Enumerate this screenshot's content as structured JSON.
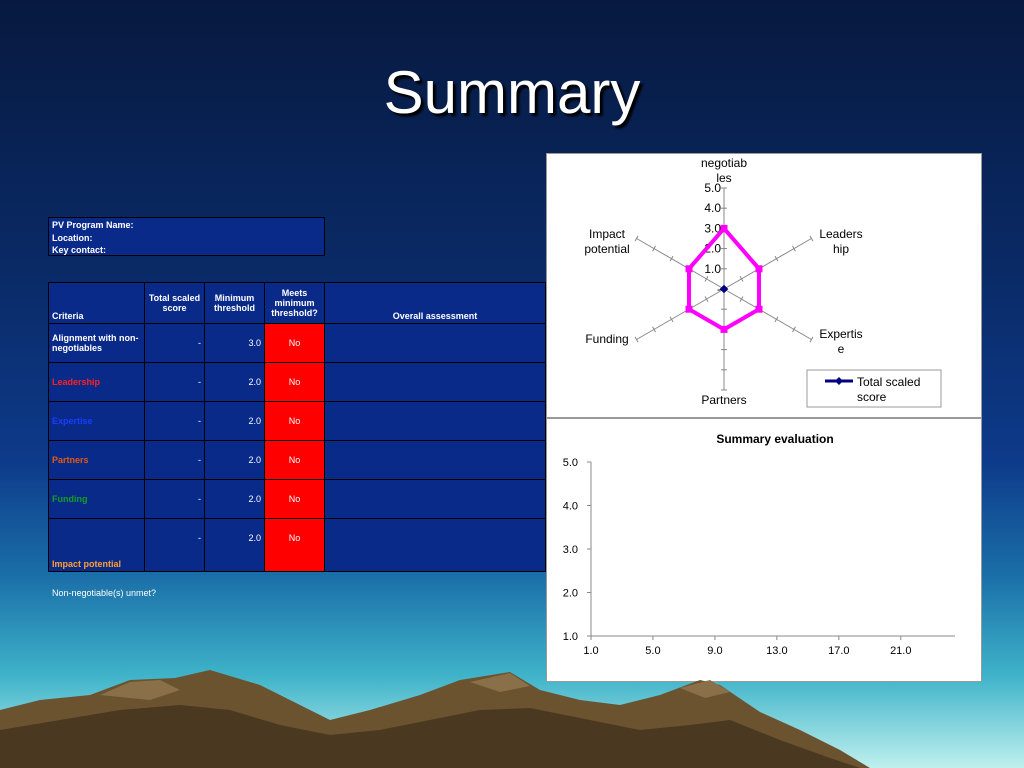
{
  "slide": {
    "title": "Summary"
  },
  "info": {
    "program_name_label": "PV Program Name:",
    "location_label": "Location:",
    "key_contact_label": "Key contact:"
  },
  "criteria_table": {
    "headers": {
      "criteria": "Criteria",
      "total_scaled_score": "Total scaled score",
      "minimum_threshold": "Minimum threshold",
      "meets_minimum_threshold": "Meets minimum threshold?",
      "overall_assessment": "Overall assessment"
    },
    "rows": [
      {
        "name": "Alignment with non-negotiables",
        "color": "#ffffff",
        "score": "-",
        "threshold": "3.0",
        "meets": "No"
      },
      {
        "name": "Leadership",
        "color": "#ff2020",
        "score": "-",
        "threshold": "2.0",
        "meets": "No"
      },
      {
        "name": "Expertise",
        "color": "#1a3cff",
        "score": "-",
        "threshold": "2.0",
        "meets": "No"
      },
      {
        "name": "Partners",
        "color": "#e05a10",
        "score": "-",
        "threshold": "2.0",
        "meets": "No"
      },
      {
        "name": "Funding",
        "color": "#10a020",
        "score": "-",
        "threshold": "2.0",
        "meets": "No"
      },
      {
        "name": "Impact potential",
        "color": "#ffa030",
        "score": "-",
        "threshold": "2.0",
        "meets": "No"
      }
    ],
    "non_negotiable_label": "Non-negotiable(s) unmet?"
  },
  "chart_data": [
    {
      "type": "radar",
      "axes": [
        "negotiables",
        "Leadership",
        "Expertise",
        "Partners",
        "Funding",
        "Impact potential"
      ],
      "axis_label_lines": [
        [
          "negotiab",
          "les"
        ],
        [
          "Leaders",
          "hip"
        ],
        [
          "Expertis",
          "e"
        ],
        [
          "Partners"
        ],
        [
          "Funding"
        ],
        [
          "Impact",
          "potential"
        ]
      ],
      "tick_labels": [
        "-",
        "1.0",
        "2.0",
        "3.0",
        "4.0",
        "5.0"
      ],
      "range": [
        0,
        5
      ],
      "series": [
        {
          "name": "Total scaled score",
          "values": [
            0,
            0,
            0,
            0,
            0,
            0
          ],
          "color": "#000080"
        },
        {
          "values": [
            3.0,
            2.0,
            2.0,
            2.0,
            2.0,
            2.0
          ],
          "color": "#ff00ff"
        }
      ],
      "legend_lines": [
        "Total scaled",
        "score"
      ],
      "legend_position": "bottom-right"
    },
    {
      "type": "line",
      "title": "Summary evaluation",
      "y_ticks": [
        "1.0",
        "2.0",
        "3.0",
        "4.0",
        "5.0"
      ],
      "x_ticks": [
        "1.0",
        "5.0",
        "9.0",
        "13.0",
        "17.0",
        "21.0"
      ],
      "xlim": [
        1,
        24.5
      ],
      "ylim": [
        1,
        5
      ],
      "series": []
    }
  ]
}
